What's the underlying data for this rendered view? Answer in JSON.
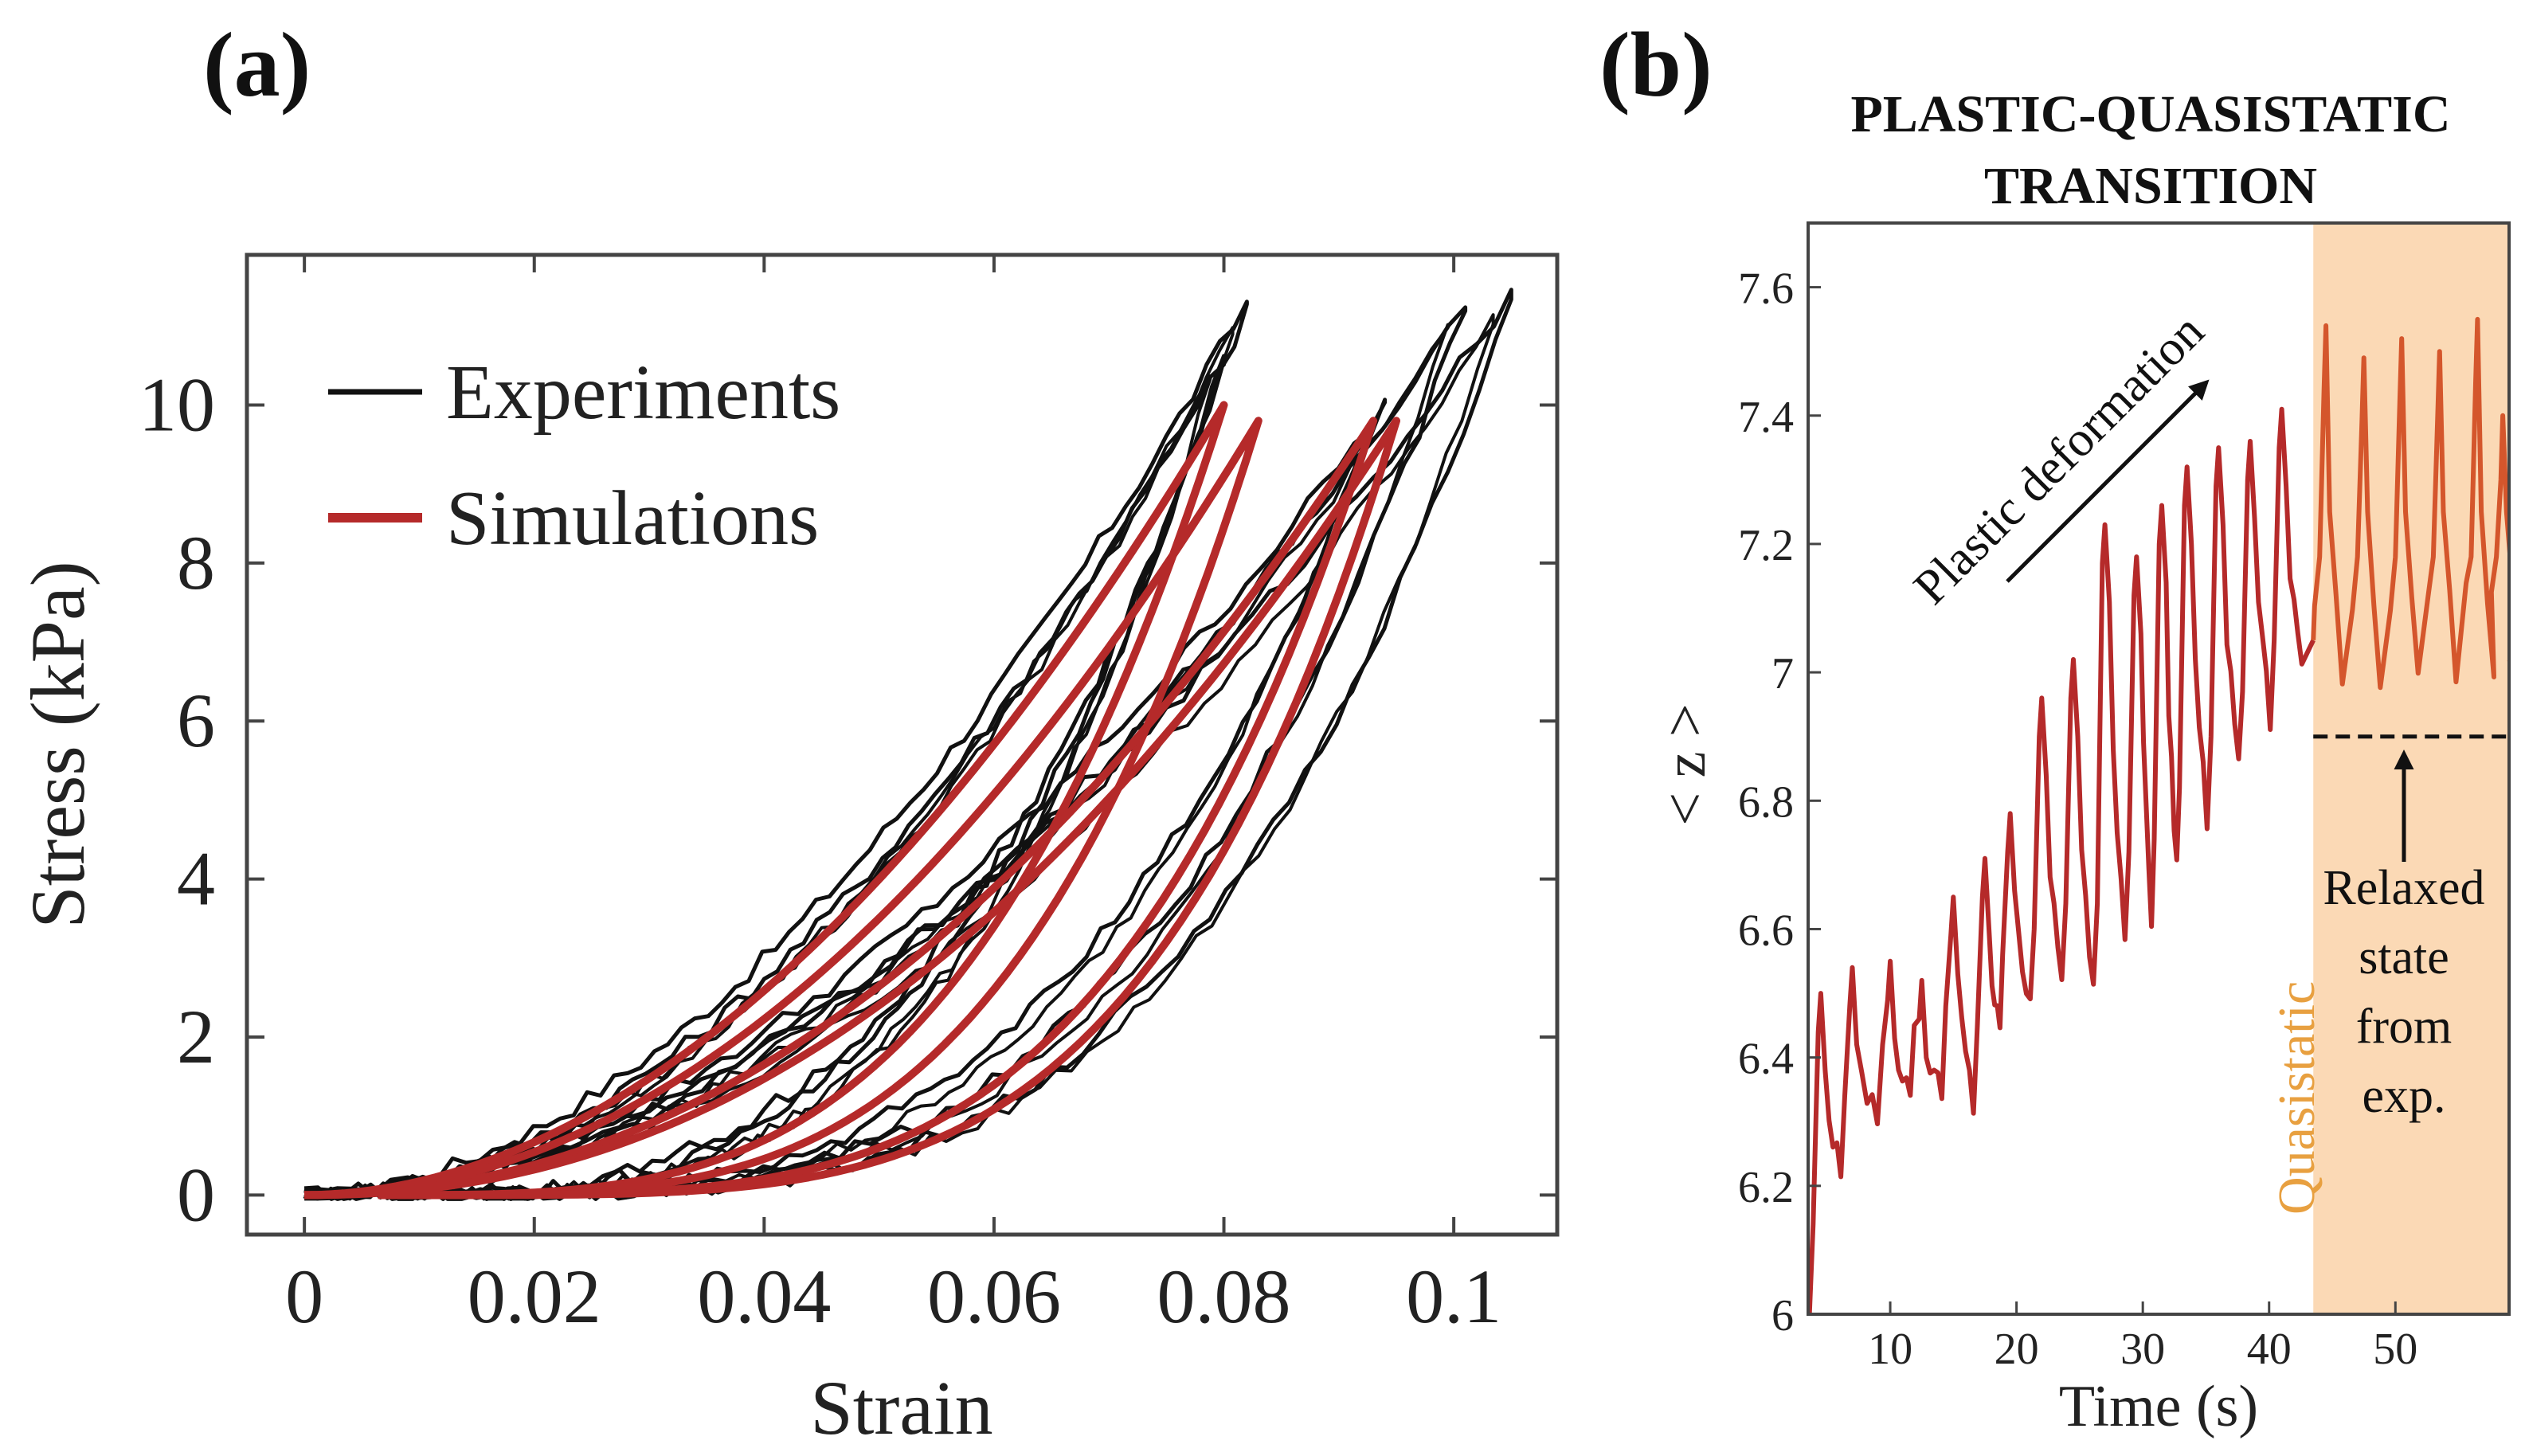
{
  "panels": {
    "a": "(a)",
    "b": "(b)"
  },
  "chart_data": [
    {
      "type": "line",
      "panel": "(a)",
      "title": "",
      "xlabel": "Strain",
      "ylabel": "Stress (kPa)",
      "xlim": [
        -0.005,
        0.109
      ],
      "ylim": [
        -0.5,
        11.9
      ],
      "xticks": [
        0,
        0.02,
        0.04,
        0.06,
        0.08,
        0.1
      ],
      "xtick_labels": [
        "0",
        "0.02",
        "0.04",
        "0.06",
        "0.08",
        "0.1"
      ],
      "yticks": [
        0,
        2,
        4,
        6,
        8,
        10
      ],
      "ytick_labels": [
        "0",
        "2",
        "4",
        "6",
        "8",
        "10"
      ],
      "legend": {
        "placement": "top-left",
        "entries": [
          "Experiments",
          "Simulations"
        ]
      },
      "colors": {
        "experiments": "#111111",
        "simulations": "#b52a2a"
      },
      "series": [
        {
          "name": "Experiments",
          "loops": [
            {
              "max_strain": 0.082,
              "max_stress": 11.3
            },
            {
              "max_strain": 0.08,
              "max_stress": 10.6
            },
            {
              "max_strain": 0.094,
              "max_stress": 10.0
            },
            {
              "max_strain": 0.101,
              "max_stress": 11.3
            },
            {
              "max_strain": 0.105,
              "max_stress": 11.4
            }
          ]
        },
        {
          "name": "Simulations",
          "loops": [
            {
              "max_strain": 0.08,
              "max_stress": 10.0
            },
            {
              "max_strain": 0.083,
              "max_stress": 9.8
            },
            {
              "max_strain": 0.093,
              "max_stress": 9.8
            },
            {
              "max_strain": 0.095,
              "max_stress": 9.8
            }
          ]
        }
      ]
    },
    {
      "type": "line",
      "panel": "(b)",
      "title": "PLASTIC-QUASISTATIC TRANSITION",
      "title_lines": [
        "PLASTIC-QUASISTATIC",
        "TRANSITION"
      ],
      "xlabel": "Time (s)",
      "ylabel": "< z >",
      "xlim": [
        3.5,
        59
      ],
      "ylim": [
        6.0,
        7.7
      ],
      "xticks": [
        10,
        20,
        30,
        40,
        50
      ],
      "xtick_labels": [
        "10",
        "20",
        "30",
        "40",
        "50"
      ],
      "yticks": [
        6.0,
        6.2,
        6.4,
        6.6,
        6.8,
        7.0,
        7.2,
        7.4,
        7.6
      ],
      "ytick_labels": [
        "6",
        "6.2",
        "6.4",
        "6.6",
        "6.8",
        "7",
        "7.2",
        "7.4",
        "7.6"
      ],
      "colors": {
        "plastic": "#b52a2a",
        "quasistatic": "#d4562c",
        "shade": "#fbd9b5"
      },
      "plastic_peaks_time": [
        4.5,
        7,
        10,
        12.5,
        15,
        17.5,
        19.5,
        22,
        24.5,
        27,
        29.5,
        31.5,
        33.5,
        36,
        38.5,
        41
      ],
      "plastic_peaks_value": [
        6.5,
        6.54,
        6.55,
        6.52,
        6.65,
        6.71,
        6.78,
        6.96,
        7.02,
        7.23,
        7.18,
        7.26,
        7.32,
        7.35,
        7.36,
        7.41
      ],
      "plastic_troughs_value": [
        6.02,
        6.22,
        6.3,
        6.33,
        6.36,
        6.33,
        6.44,
        6.48,
        6.52,
        6.52,
        6.6,
        6.62,
        6.7,
        6.78,
        6.85,
        6.93
      ],
      "quasistatic_range": [
        43.5,
        59
      ],
      "quasistatic_peaks_time": [
        44.5,
        47.5,
        50.5,
        53.5,
        56.5,
        58.5
      ],
      "quasistatic_peaks_value": [
        7.54,
        7.49,
        7.52,
        7.5,
        7.55,
        7.4
      ],
      "quasistatic_baseline": 7.0,
      "relaxed_state_value": 6.9,
      "annotations": {
        "plastic": "Plastic deformation",
        "relaxed_lines": [
          "Relaxed",
          "state",
          "from",
          "exp."
        ],
        "quasistatic": "Quasistatic"
      }
    }
  ]
}
